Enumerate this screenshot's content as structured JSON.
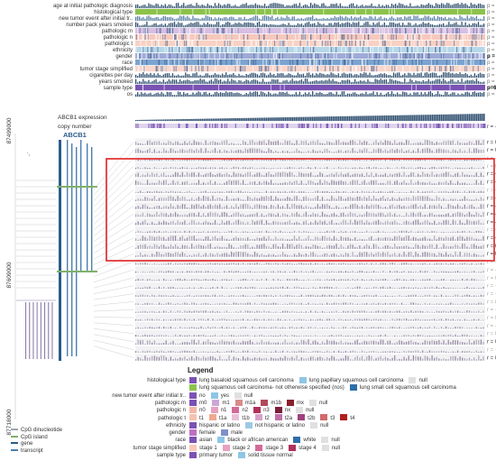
{
  "clinical_tracks": [
    {
      "label": "age at initial pathologic diagnosis",
      "p": "p = 0.057",
      "color": "#2f4f6f",
      "style": "bars"
    },
    {
      "label": "histological type",
      "p": "p = 0.844",
      "color": "#8bc34a",
      "style": "solid"
    },
    {
      "label": "new tumor event after initial tr..",
      "p": "p = 0.524",
      "color": "#5b7fa6",
      "style": "bars"
    },
    {
      "label": "number pack years smoked",
      "p": "p = 0.042",
      "color": "#2f4f6f",
      "style": "bars"
    },
    {
      "label": "pathologic m",
      "p": "p = 0.598",
      "color": "#c9a8d8",
      "style": "stripes"
    },
    {
      "label": "pathologic n",
      "p": "p = 0.761",
      "color": "#f4b6a6",
      "style": "stripes"
    },
    {
      "label": "pathologic t",
      "p": "p = 0.704",
      "color": "#f6c2b0",
      "style": "stripes"
    },
    {
      "label": "ethnicity",
      "p": "p = 0.346",
      "color": "#9ec9e2",
      "style": "stripes"
    },
    {
      "label": "gender",
      "p": "p = 0.006",
      "color": "#7f8fc9",
      "style": "stripes",
      "bold": true
    },
    {
      "label": "race",
      "p": "p = 0.705",
      "color": "#4f86c0",
      "style": "stripes"
    },
    {
      "label": "tumor stage simplified",
      "p": "p = 0.710",
      "color": "#f8c8b8",
      "style": "stripes"
    },
    {
      "label": "cigarettes per day",
      "p": "p = 0.042",
      "color": "#2f4f6f",
      "style": "bars"
    },
    {
      "label": "years smoked",
      "p": "p = 0.048",
      "color": "#2f4f6f",
      "style": "bars"
    },
    {
      "label": "sample type",
      "p": "p=6.817x10",
      "p_sup": "-14",
      "color": "#7b52b4",
      "style": "solid",
      "bold": true
    },
    {
      "label": "os",
      "p": "p = -0.005",
      "color": "#2f4f6f",
      "style": "bars"
    }
  ],
  "expression_tracks": [
    {
      "label": "ABCB1 expression",
      "r": "",
      "color": "#2f4f6f"
    },
    {
      "label": "copy number",
      "r": "r = -0.116",
      "stars": "**",
      "color": "#7b52b4"
    }
  ],
  "gene_label": "ABCB1",
  "axis_ticks": [
    "87499000",
    "87609000",
    "87718000"
  ],
  "cpg_rows": [
    {
      "r": "r = 0.300",
      "stars": "***",
      "bold": false
    },
    {
      "r": "r = 0.393",
      "stars": "***",
      "bold": false
    },
    {
      "r": "r = -0.082",
      "stars": "",
      "bold": false,
      "faint": true
    },
    {
      "r": "r = 0.033",
      "stars": "",
      "bold": false,
      "faint": true
    },
    {
      "r": "r = -0.152",
      "stars": "**",
      "bold": false
    },
    {
      "r": "r = -0.136",
      "stars": "**",
      "bold": false
    },
    {
      "r": "r = -0.065",
      "stars": "",
      "bold": false,
      "faint": true
    },
    {
      "r": "r = -0.155",
      "stars": "**",
      "bold": false
    },
    {
      "r": "r = -0.119",
      "stars": "*",
      "bold": false
    },
    {
      "r": "r = -0.114",
      "stars": "*",
      "bold": false
    },
    {
      "r": "r = -0.153",
      "stars": "**",
      "bold": false
    },
    {
      "r": "r = -0.086",
      "stars": "",
      "bold": false,
      "faint": true
    },
    {
      "r": "r = -0.134",
      "stars": "**",
      "bold": false
    },
    {
      "r": "r = 0.414",
      "stars": "***",
      "bold": false
    },
    {
      "r": "r = 0.432",
      "stars": "***",
      "bold": false
    },
    {
      "r": "r = -0.050",
      "stars": "",
      "bold": false,
      "faint": true
    },
    {
      "r": "r = -0.020",
      "stars": "",
      "bold": false,
      "faint": true
    },
    {
      "r": "r = 0.009",
      "stars": "",
      "bold": false,
      "faint": true
    },
    {
      "r": "r = -0.015",
      "stars": "",
      "bold": false,
      "faint": true
    },
    {
      "r": "r = -0.023",
      "stars": "",
      "bold": false,
      "faint": true
    },
    {
      "r": "r = 0.007",
      "stars": "",
      "bold": false,
      "faint": true
    },
    {
      "r": "r = -0.007",
      "stars": "",
      "bold": false,
      "faint": true
    },
    {
      "r": "r = 0.007",
      "stars": "",
      "bold": false,
      "faint": true
    },
    {
      "r": "r = -0.049",
      "stars": "",
      "bold": false,
      "faint": true
    },
    {
      "r": "r = 0.075",
      "stars": "",
      "bold": false,
      "faint": true
    },
    {
      "r": "r = 0.117",
      "stars": "*",
      "bold": false
    },
    {
      "r": "r = -0.033",
      "stars": "",
      "bold": false,
      "faint": true
    },
    {
      "r": "r = 0.320",
      "stars": "***",
      "bold": false
    }
  ],
  "bottom_legend": [
    {
      "label": "CpG dinucleotide",
      "color": "#9aa7b3"
    },
    {
      "label": "CpG island",
      "color": "#7fb06a"
    },
    {
      "label": "gene",
      "color": "#2b5b8a"
    },
    {
      "label": "transcript",
      "color": "#4a7fb0"
    }
  ],
  "legend": {
    "title": "Legend",
    "rows": [
      {
        "label": "histological type",
        "items": [
          {
            "text": "lung basaloid squamous cell carcinoma",
            "color": "#7b52b4"
          },
          {
            "text": "lung papillary squamous cell carcinoma",
            "color": "#8ec6e6"
          },
          {
            "text": "null",
            "color": "#e0e0e0"
          }
        ]
      },
      {
        "label": "",
        "items": [
          {
            "text": "lung squamous cell carcinoma- not otherwise specified (nos)",
            "color": "#8bc34a"
          },
          {
            "text": "lung small cell squamous cell carcinoma",
            "color": "#2e6fa8"
          }
        ]
      },
      {
        "label": "new tumor event after initial tr..",
        "items": [
          {
            "text": "no",
            "color": "#7b52b4"
          },
          {
            "text": "yes",
            "color": "#8ec6e6"
          },
          {
            "text": "null",
            "color": "#e0e0e0"
          }
        ]
      },
      {
        "label": "pathologic m",
        "items": [
          {
            "text": "m0",
            "color": "#7b52b4"
          },
          {
            "text": "m1",
            "color": "#c9a8d8"
          },
          {
            "text": "m1a",
            "color": "#d98c8c"
          },
          {
            "text": "m1b",
            "color": "#b04a5a"
          },
          {
            "text": "mx",
            "color": "#8a1f2e"
          },
          {
            "text": "null",
            "color": "#e0e0e0"
          }
        ]
      },
      {
        "label": "pathologic n",
        "items": [
          {
            "text": "n0",
            "color": "#f4b6a6"
          },
          {
            "text": "n1",
            "color": "#e8a0c0"
          },
          {
            "text": "n2",
            "color": "#d46a9a"
          },
          {
            "text": "n3",
            "color": "#b0305a"
          },
          {
            "text": "nx",
            "color": "#7a1f3a"
          },
          {
            "text": "null",
            "color": "#e0e0e0"
          }
        ]
      },
      {
        "label": "pathologic t",
        "items": [
          {
            "text": "t1",
            "color": "#f6c2b0"
          },
          {
            "text": "t1a",
            "color": "#f0a890"
          },
          {
            "text": "t1b",
            "color": "#e8c0d8"
          },
          {
            "text": "t2",
            "color": "#d8a0c8"
          },
          {
            "text": "t2a",
            "color": "#c070a8"
          },
          {
            "text": "t2b",
            "color": "#a04080"
          },
          {
            "text": "t3",
            "color": "#d46a6a"
          },
          {
            "text": "t4",
            "color": "#b02020"
          }
        ]
      },
      {
        "label": "ethnicity",
        "items": [
          {
            "text": "hispanic or latino",
            "color": "#7b52b4"
          },
          {
            "text": "not hispanic or latino",
            "color": "#9ec9e2"
          },
          {
            "text": "null",
            "color": "#e0e0e0"
          }
        ]
      },
      {
        "label": "gender",
        "items": [
          {
            "text": "female",
            "color": "#c070c0"
          },
          {
            "text": "male",
            "color": "#7f8fc9"
          }
        ]
      },
      {
        "label": "race",
        "items": [
          {
            "text": "asian",
            "color": "#7b52b4"
          },
          {
            "text": "black or african american",
            "color": "#8ec6e6"
          },
          {
            "text": "white",
            "color": "#2e6fa8"
          },
          {
            "text": "null",
            "color": "#e0e0e0"
          }
        ]
      },
      {
        "label": "tumor stage simplified",
        "items": [
          {
            "text": "stage 1",
            "color": "#f8c8b8"
          },
          {
            "text": "stage 2",
            "color": "#e8a0c0"
          },
          {
            "text": "stage 3",
            "color": "#d46a9a"
          },
          {
            "text": "stage 4",
            "color": "#b0305a"
          },
          {
            "text": "null",
            "color": "#e0e0e0"
          }
        ]
      },
      {
        "label": "sample type",
        "items": [
          {
            "text": "primary tumor",
            "color": "#7b52b4"
          },
          {
            "text": "solid tissue normal",
            "color": "#8ec6e6"
          }
        ]
      }
    ]
  }
}
